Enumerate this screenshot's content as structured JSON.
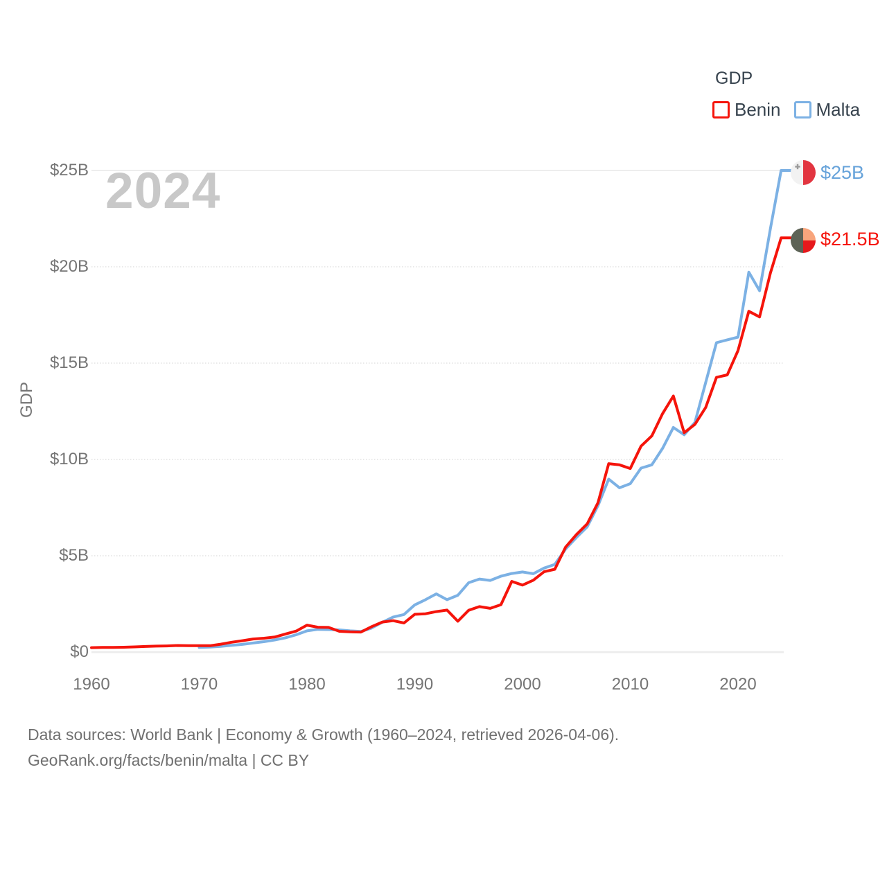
{
  "legend": {
    "title": "GDP",
    "items": [
      {
        "label": "Benin",
        "color": "#f5140b"
      },
      {
        "label": "Malta",
        "color": "#7cb1e4"
      }
    ]
  },
  "watermark": "2024",
  "y_axis": {
    "title": "GDP",
    "ticks": [
      {
        "value": 0,
        "label": "$0"
      },
      {
        "value": 5,
        "label": "$5B"
      },
      {
        "value": 10,
        "label": "$10B"
      },
      {
        "value": 15,
        "label": "$15B"
      },
      {
        "value": 20,
        "label": "$20B"
      },
      {
        "value": 25,
        "label": "$25B"
      }
    ]
  },
  "x_axis": {
    "ticks": [
      {
        "year": 1960,
        "label": "1960"
      },
      {
        "year": 1970,
        "label": "1970"
      },
      {
        "year": 1980,
        "label": "1980"
      },
      {
        "year": 1990,
        "label": "1990"
      },
      {
        "year": 2000,
        "label": "2000"
      },
      {
        "year": 2010,
        "label": "2010"
      },
      {
        "year": 2020,
        "label": "2020"
      }
    ]
  },
  "end_labels": [
    {
      "series": "Malta",
      "text": "$25B",
      "color": "#67a3da"
    },
    {
      "series": "Benin",
      "text": "$21.5B",
      "color": "#f5140b"
    }
  ],
  "flags": {
    "malta": {
      "left": "#f2f2f2",
      "right": "#e23540",
      "cross": "#9b9b9b"
    },
    "benin": {
      "left": "#5d6356",
      "top_right": "#f8a57c",
      "bottom_right": "#e6191c"
    }
  },
  "footer": {
    "line1": "Data sources: World Bank | Economy & Growth (1960–2024, retrieved 2026-04-06).",
    "line2": "GeoRank.org/facts/benin/malta | CC BY"
  },
  "chart_data": {
    "type": "line",
    "title": "GDP",
    "ylabel": "GDP",
    "units": "USD billions",
    "x_range": [
      1960,
      2024
    ],
    "ylim": [
      0,
      25
    ],
    "grid": "horizontal",
    "legend_position": "top-right",
    "series": [
      {
        "name": "Benin",
        "color": "#f5140b",
        "start_year": 1960,
        "end_value_label": "$21.5B",
        "values": [
          0.23,
          0.24,
          0.24,
          0.25,
          0.27,
          0.29,
          0.31,
          0.32,
          0.34,
          0.33,
          0.33,
          0.33,
          0.41,
          0.51,
          0.59,
          0.68,
          0.72,
          0.78,
          0.94,
          1.09,
          1.4,
          1.29,
          1.28,
          1.08,
          1.05,
          1.04,
          1.32,
          1.56,
          1.63,
          1.51,
          1.96,
          1.99,
          2.1,
          2.18,
          1.6,
          2.17,
          2.36,
          2.27,
          2.46,
          3.67,
          3.48,
          3.73,
          4.17,
          4.3,
          5.45,
          6.1,
          6.65,
          7.75,
          9.78,
          9.72,
          9.53,
          10.69,
          11.22,
          12.38,
          13.29,
          11.39,
          11.82,
          12.7,
          14.26,
          14.39,
          15.65,
          17.69,
          17.4,
          19.67,
          21.5
        ]
      },
      {
        "name": "Malta",
        "color": "#7cb1e4",
        "start_year": 1970,
        "end_value_label": "$25B",
        "values": [
          0.24,
          0.26,
          0.3,
          0.35,
          0.4,
          0.47,
          0.54,
          0.63,
          0.74,
          0.9,
          1.1,
          1.18,
          1.17,
          1.15,
          1.1,
          1.07,
          1.25,
          1.55,
          1.82,
          1.95,
          2.45,
          2.72,
          3.02,
          2.72,
          2.95,
          3.6,
          3.79,
          3.72,
          3.94,
          4.08,
          4.16,
          4.07,
          4.36,
          4.55,
          5.35,
          5.95,
          6.5,
          7.6,
          8.98,
          8.53,
          8.74,
          9.55,
          9.72,
          10.58,
          11.66,
          11.28,
          11.92,
          14.0,
          16.06,
          16.21,
          16.35,
          19.72,
          18.76,
          21.97,
          25.0
        ]
      }
    ]
  }
}
